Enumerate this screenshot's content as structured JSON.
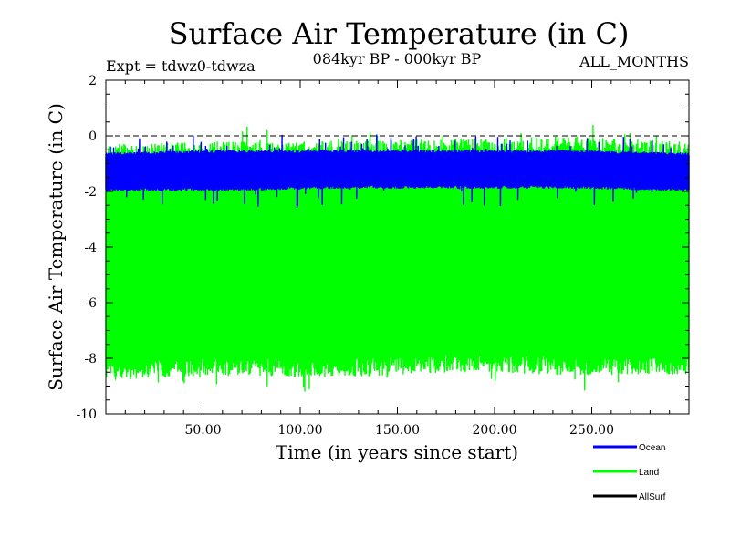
{
  "chart_data": {
    "type": "line",
    "title": "Surface Air Temperature (in C)",
    "subtitle": "084kyr BP - 000kyr BP",
    "annotation_left": "Expt = tdwz0-tdwza",
    "annotation_right": "ALL_MONTHS",
    "xlabel": "Time (in years since start)",
    "ylabel": "Surface Air Temperature (in C)",
    "xlim": [
      0,
      300
    ],
    "ylim": [
      -10,
      2
    ],
    "xticks": [
      {
        "value": 50,
        "label": "50.00"
      },
      {
        "value": 100,
        "label": "100.00"
      },
      {
        "value": 150,
        "label": "150.00"
      },
      {
        "value": 200,
        "label": "200.00"
      },
      {
        "value": 250,
        "label": "250.00"
      }
    ],
    "yticks": [
      {
        "value": 2,
        "label": "2"
      },
      {
        "value": 0,
        "label": "0"
      },
      {
        "value": -2,
        "label": "-2"
      },
      {
        "value": -4,
        "label": "-4"
      },
      {
        "value": -6,
        "label": "-6"
      },
      {
        "value": -8,
        "label": "-8"
      },
      {
        "value": -10,
        "label": "-10"
      }
    ],
    "reference_line": {
      "y": 0,
      "style": "dashed"
    },
    "legend_position": "bottom-right",
    "series": [
      {
        "name": "Land",
        "color": "#00ff00",
        "upper_envelope": [
          -0.3,
          -0.2,
          -0.2,
          -0.1,
          0.0,
          -0.2
        ],
        "lower_envelope": [
          -8.8,
          -8.6,
          -8.7,
          -8.5,
          -8.6,
          -8.6
        ],
        "note": "high-frequency seasonal oscillation between envelopes"
      },
      {
        "name": "Ocean",
        "color": "#0000ff",
        "upper_envelope": [
          -0.6,
          -0.5,
          -0.5,
          -0.5,
          -0.5,
          -0.6
        ],
        "lower_envelope": [
          -2.0,
          -2.0,
          -1.9,
          -1.9,
          -1.9,
          -2.0
        ],
        "note": "high-frequency seasonal oscillation between envelopes"
      },
      {
        "name": "AllSurf",
        "color": "#000000",
        "upper_envelope": [],
        "lower_envelope": [],
        "note": "not visible"
      }
    ],
    "envelope_x": [
      0,
      60,
      120,
      180,
      240,
      300
    ]
  }
}
